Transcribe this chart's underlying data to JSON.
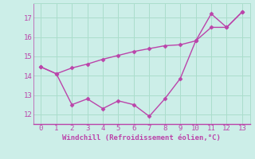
{
  "line1_x": [
    0,
    1,
    2,
    3,
    4,
    5,
    6,
    7,
    8,
    9,
    10,
    11,
    12,
    13
  ],
  "line1_y": [
    14.45,
    14.1,
    14.4,
    14.6,
    14.85,
    15.05,
    15.25,
    15.4,
    15.55,
    15.6,
    15.8,
    16.5,
    16.5,
    17.3
  ],
  "line2_x": [
    0,
    1,
    2,
    3,
    4,
    5,
    6,
    7,
    8,
    9,
    10,
    11,
    12,
    13
  ],
  "line2_y": [
    14.45,
    14.1,
    12.5,
    12.8,
    12.3,
    12.7,
    12.5,
    11.9,
    12.8,
    13.85,
    15.8,
    17.2,
    16.5,
    17.3
  ],
  "line_color": "#bb44aa",
  "background_color": "#cceee8",
  "grid_color": "#aaddcc",
  "xlabel": "Windchill (Refroidissement éolien,°C)",
  "xlabel_color": "#bb44aa",
  "tick_color": "#bb44aa",
  "ylim": [
    11.5,
    17.75
  ],
  "xlim": [
    -0.5,
    13.5
  ],
  "yticks": [
    12,
    13,
    14,
    15,
    16,
    17
  ],
  "xticks": [
    0,
    1,
    2,
    3,
    4,
    5,
    6,
    7,
    8,
    9,
    10,
    11,
    12,
    13
  ],
  "marker": "D",
  "markersize": 2.5,
  "linewidth": 1.0
}
